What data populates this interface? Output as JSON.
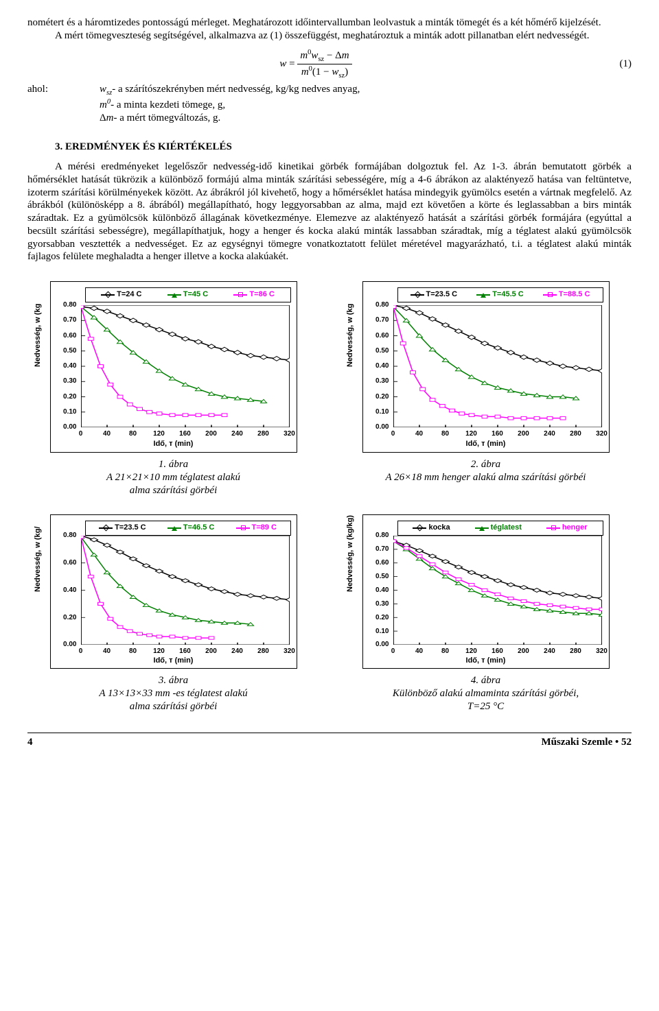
{
  "paragraph1": "nométert és a háromtizedes pontosságú mérleget. Meghatározott időintervallumban leolvastuk a minták tömegét és a két hőmérő kijelzését.",
  "paragraph2": "A mért tömegveszteség segítségével, alkalmazva az (1) összefüggést, meghatároztuk a minták adott pillanatban elért nedvességét.",
  "equation": {
    "label": "(1)"
  },
  "defs_prefix": "ahol:",
  "def1": "wₛ𝓏- a szárítószekrényben mért nedvesség, kg/kg nedves anyag,",
  "def2": "m⁰- a minta kezdeti tömege, g,",
  "def3": "Δm- a mért tömegváltozás, g.",
  "section_title": "3. EREDMÉNYEK ÉS KIÉRTÉKELÉS",
  "paragraph3": "A mérési eredményeket legelőszőr nedvesség-idő kinetikai görbék formájában dolgoztuk fel. Az 1-3. ábrán bemutatott görbék a hőmérséklet hatását tükrözik a különböző formájú alma minták szárítási sebességére, míg a 4-6 ábrákon az alaktényező hatása van feltüntetve, izoterm szárítási körülményekek között. Az ábrákról jól kivehető, hogy a hőmérséklet hatása mindegyik gyümölcs esetén a vártnak megfelelő. Az ábrákból (különösképp a 8. ábrából) megállapítható, hogy leggyorsabban az alma, majd ezt követően a körte és leglassabban a birs minták száradtak. Ez a gyümölcsök különböző állagának következménye. Elemezve az alaktényező hatását a szárítási görbék formájára (egyúttal a becsült szárítási sebességre), megállapíthatjuk, hogy a henger és kocka alakú minták lassabban száradtak, míg a téglatest alakú gyümölcsök gyorsabban vesztették a nedvességet. Ez az egységnyi tömegre vonatkoztatott felület méretével magyarázható, t.i. a téglatest alakú minták fajlagos felülete meghaladta a henger illetve a kocka alakúakét.",
  "axis": {
    "x_label": "Idő, т (min)",
    "y_label": "Nedvesség, w (kg",
    "y_label_b": "Nedvesség, w (kg/",
    "y_label_c": "Nedvesség, w (kg/kg)",
    "xmin": 0,
    "xmax": 320,
    "xstep": 40,
    "ymin": 0,
    "ymax": 0.8
  },
  "yticks9": [
    "0.80",
    "0.70",
    "0.60",
    "0.50",
    "0.40",
    "0.30",
    "0.20",
    "0.10",
    "0.00"
  ],
  "yticks5": [
    "0.80",
    "0.60",
    "0.40",
    "0.20",
    "0.00"
  ],
  "xticks": [
    "0",
    "40",
    "80",
    "120",
    "160",
    "200",
    "240",
    "280",
    "320"
  ],
  "colors": {
    "black": "#000000",
    "green": "#008000",
    "magenta": "#ff00ff"
  },
  "chart1": {
    "legend": [
      "T=24 C",
      "T=45 C",
      "T=86 C"
    ],
    "series": {
      "a": [
        [
          0,
          0.79
        ],
        [
          20,
          0.78
        ],
        [
          40,
          0.76
        ],
        [
          60,
          0.73
        ],
        [
          80,
          0.7
        ],
        [
          100,
          0.67
        ],
        [
          120,
          0.64
        ],
        [
          140,
          0.61
        ],
        [
          160,
          0.58
        ],
        [
          180,
          0.56
        ],
        [
          200,
          0.53
        ],
        [
          220,
          0.51
        ],
        [
          240,
          0.49
        ],
        [
          260,
          0.47
        ],
        [
          280,
          0.46
        ],
        [
          300,
          0.45
        ],
        [
          320,
          0.44
        ]
      ],
      "b": [
        [
          0,
          0.79
        ],
        [
          20,
          0.72
        ],
        [
          40,
          0.64
        ],
        [
          60,
          0.56
        ],
        [
          80,
          0.49
        ],
        [
          100,
          0.43
        ],
        [
          120,
          0.37
        ],
        [
          140,
          0.32
        ],
        [
          160,
          0.28
        ],
        [
          180,
          0.25
        ],
        [
          200,
          0.22
        ],
        [
          220,
          0.2
        ],
        [
          240,
          0.19
        ],
        [
          260,
          0.18
        ],
        [
          280,
          0.17
        ]
      ],
      "c": [
        [
          0,
          0.79
        ],
        [
          15,
          0.58
        ],
        [
          30,
          0.4
        ],
        [
          45,
          0.28
        ],
        [
          60,
          0.2
        ],
        [
          75,
          0.15
        ],
        [
          90,
          0.12
        ],
        [
          105,
          0.1
        ],
        [
          120,
          0.09
        ],
        [
          140,
          0.08
        ],
        [
          160,
          0.08
        ],
        [
          180,
          0.08
        ],
        [
          200,
          0.08
        ],
        [
          220,
          0.08
        ]
      ]
    }
  },
  "chart2": {
    "legend": [
      "T=23.5 C",
      "T=45.5 C",
      "T=88.5 C"
    ],
    "series": {
      "a": [
        [
          0,
          0.8
        ],
        [
          20,
          0.78
        ],
        [
          40,
          0.75
        ],
        [
          60,
          0.71
        ],
        [
          80,
          0.67
        ],
        [
          100,
          0.63
        ],
        [
          120,
          0.59
        ],
        [
          140,
          0.55
        ],
        [
          160,
          0.52
        ],
        [
          180,
          0.49
        ],
        [
          200,
          0.46
        ],
        [
          220,
          0.44
        ],
        [
          240,
          0.42
        ],
        [
          260,
          0.4
        ],
        [
          280,
          0.39
        ],
        [
          300,
          0.38
        ],
        [
          320,
          0.37
        ]
      ],
      "b": [
        [
          0,
          0.79
        ],
        [
          20,
          0.7
        ],
        [
          40,
          0.6
        ],
        [
          60,
          0.51
        ],
        [
          80,
          0.44
        ],
        [
          100,
          0.38
        ],
        [
          120,
          0.33
        ],
        [
          140,
          0.29
        ],
        [
          160,
          0.26
        ],
        [
          180,
          0.24
        ],
        [
          200,
          0.22
        ],
        [
          220,
          0.21
        ],
        [
          240,
          0.2
        ],
        [
          260,
          0.2
        ],
        [
          280,
          0.19
        ]
      ],
      "c": [
        [
          0,
          0.79
        ],
        [
          15,
          0.55
        ],
        [
          30,
          0.36
        ],
        [
          45,
          0.25
        ],
        [
          60,
          0.18
        ],
        [
          75,
          0.14
        ],
        [
          90,
          0.11
        ],
        [
          105,
          0.09
        ],
        [
          120,
          0.08
        ],
        [
          140,
          0.07
        ],
        [
          160,
          0.07
        ],
        [
          180,
          0.06
        ],
        [
          200,
          0.06
        ],
        [
          220,
          0.06
        ],
        [
          240,
          0.06
        ],
        [
          260,
          0.06
        ]
      ]
    }
  },
  "chart3": {
    "legend": [
      "T=23.5 C",
      "T=46.5 C",
      "T=89   C"
    ],
    "series": {
      "a": [
        [
          0,
          0.8
        ],
        [
          20,
          0.77
        ],
        [
          40,
          0.73
        ],
        [
          60,
          0.68
        ],
        [
          80,
          0.63
        ],
        [
          100,
          0.58
        ],
        [
          120,
          0.54
        ],
        [
          140,
          0.5
        ],
        [
          160,
          0.47
        ],
        [
          180,
          0.44
        ],
        [
          200,
          0.41
        ],
        [
          220,
          0.39
        ],
        [
          240,
          0.37
        ],
        [
          260,
          0.36
        ],
        [
          280,
          0.35
        ],
        [
          300,
          0.34
        ],
        [
          320,
          0.33
        ]
      ],
      "b": [
        [
          0,
          0.79
        ],
        [
          20,
          0.66
        ],
        [
          40,
          0.53
        ],
        [
          60,
          0.43
        ],
        [
          80,
          0.35
        ],
        [
          100,
          0.29
        ],
        [
          120,
          0.25
        ],
        [
          140,
          0.22
        ],
        [
          160,
          0.2
        ],
        [
          180,
          0.18
        ],
        [
          200,
          0.17
        ],
        [
          220,
          0.16
        ],
        [
          240,
          0.16
        ],
        [
          260,
          0.15
        ]
      ],
      "c": [
        [
          0,
          0.79
        ],
        [
          15,
          0.5
        ],
        [
          30,
          0.3
        ],
        [
          45,
          0.19
        ],
        [
          60,
          0.13
        ],
        [
          75,
          0.1
        ],
        [
          90,
          0.08
        ],
        [
          105,
          0.07
        ],
        [
          120,
          0.06
        ],
        [
          140,
          0.06
        ],
        [
          160,
          0.05
        ],
        [
          180,
          0.05
        ],
        [
          200,
          0.05
        ]
      ]
    }
  },
  "chart4": {
    "legend": [
      "kocka",
      "téglatest",
      "henger"
    ],
    "series": {
      "a": [
        [
          0,
          0.76
        ],
        [
          20,
          0.73
        ],
        [
          40,
          0.69
        ],
        [
          60,
          0.65
        ],
        [
          80,
          0.61
        ],
        [
          100,
          0.57
        ],
        [
          120,
          0.53
        ],
        [
          140,
          0.5
        ],
        [
          160,
          0.47
        ],
        [
          180,
          0.44
        ],
        [
          200,
          0.42
        ],
        [
          220,
          0.4
        ],
        [
          240,
          0.38
        ],
        [
          260,
          0.37
        ],
        [
          280,
          0.36
        ],
        [
          300,
          0.35
        ],
        [
          320,
          0.34
        ]
      ],
      "b": [
        [
          0,
          0.76
        ],
        [
          20,
          0.7
        ],
        [
          40,
          0.63
        ],
        [
          60,
          0.56
        ],
        [
          80,
          0.5
        ],
        [
          100,
          0.45
        ],
        [
          120,
          0.4
        ],
        [
          140,
          0.36
        ],
        [
          160,
          0.33
        ],
        [
          180,
          0.3
        ],
        [
          200,
          0.28
        ],
        [
          220,
          0.26
        ],
        [
          240,
          0.25
        ],
        [
          260,
          0.24
        ],
        [
          280,
          0.23
        ],
        [
          300,
          0.23
        ],
        [
          320,
          0.22
        ]
      ],
      "c": [
        [
          0,
          0.76
        ],
        [
          20,
          0.71
        ],
        [
          40,
          0.65
        ],
        [
          60,
          0.59
        ],
        [
          80,
          0.53
        ],
        [
          100,
          0.48
        ],
        [
          120,
          0.44
        ],
        [
          140,
          0.4
        ],
        [
          160,
          0.37
        ],
        [
          180,
          0.34
        ],
        [
          200,
          0.32
        ],
        [
          220,
          0.3
        ],
        [
          240,
          0.29
        ],
        [
          260,
          0.28
        ],
        [
          280,
          0.27
        ],
        [
          300,
          0.26
        ],
        [
          320,
          0.26
        ]
      ]
    }
  },
  "cap1": {
    "num": "1. ábra",
    "text": "A 21×21×10 mm  téglatest alakú\nalma szárítási görbéi"
  },
  "cap2": {
    "num": "2. ábra",
    "text": "A 26×18 mm henger alakú alma szárítási görbéi"
  },
  "cap3": {
    "num": "3. ábra",
    "text": "A 13×13×33 mm -es téglatest alakú\nalma szárítási görbéi"
  },
  "cap4": {
    "num": "4. ábra",
    "text": "Különböző alakú almaminta szárítási görbéi,\nT=25 °C"
  },
  "footer": {
    "page": "4",
    "journal": "Műszaki Szemle • 52"
  }
}
